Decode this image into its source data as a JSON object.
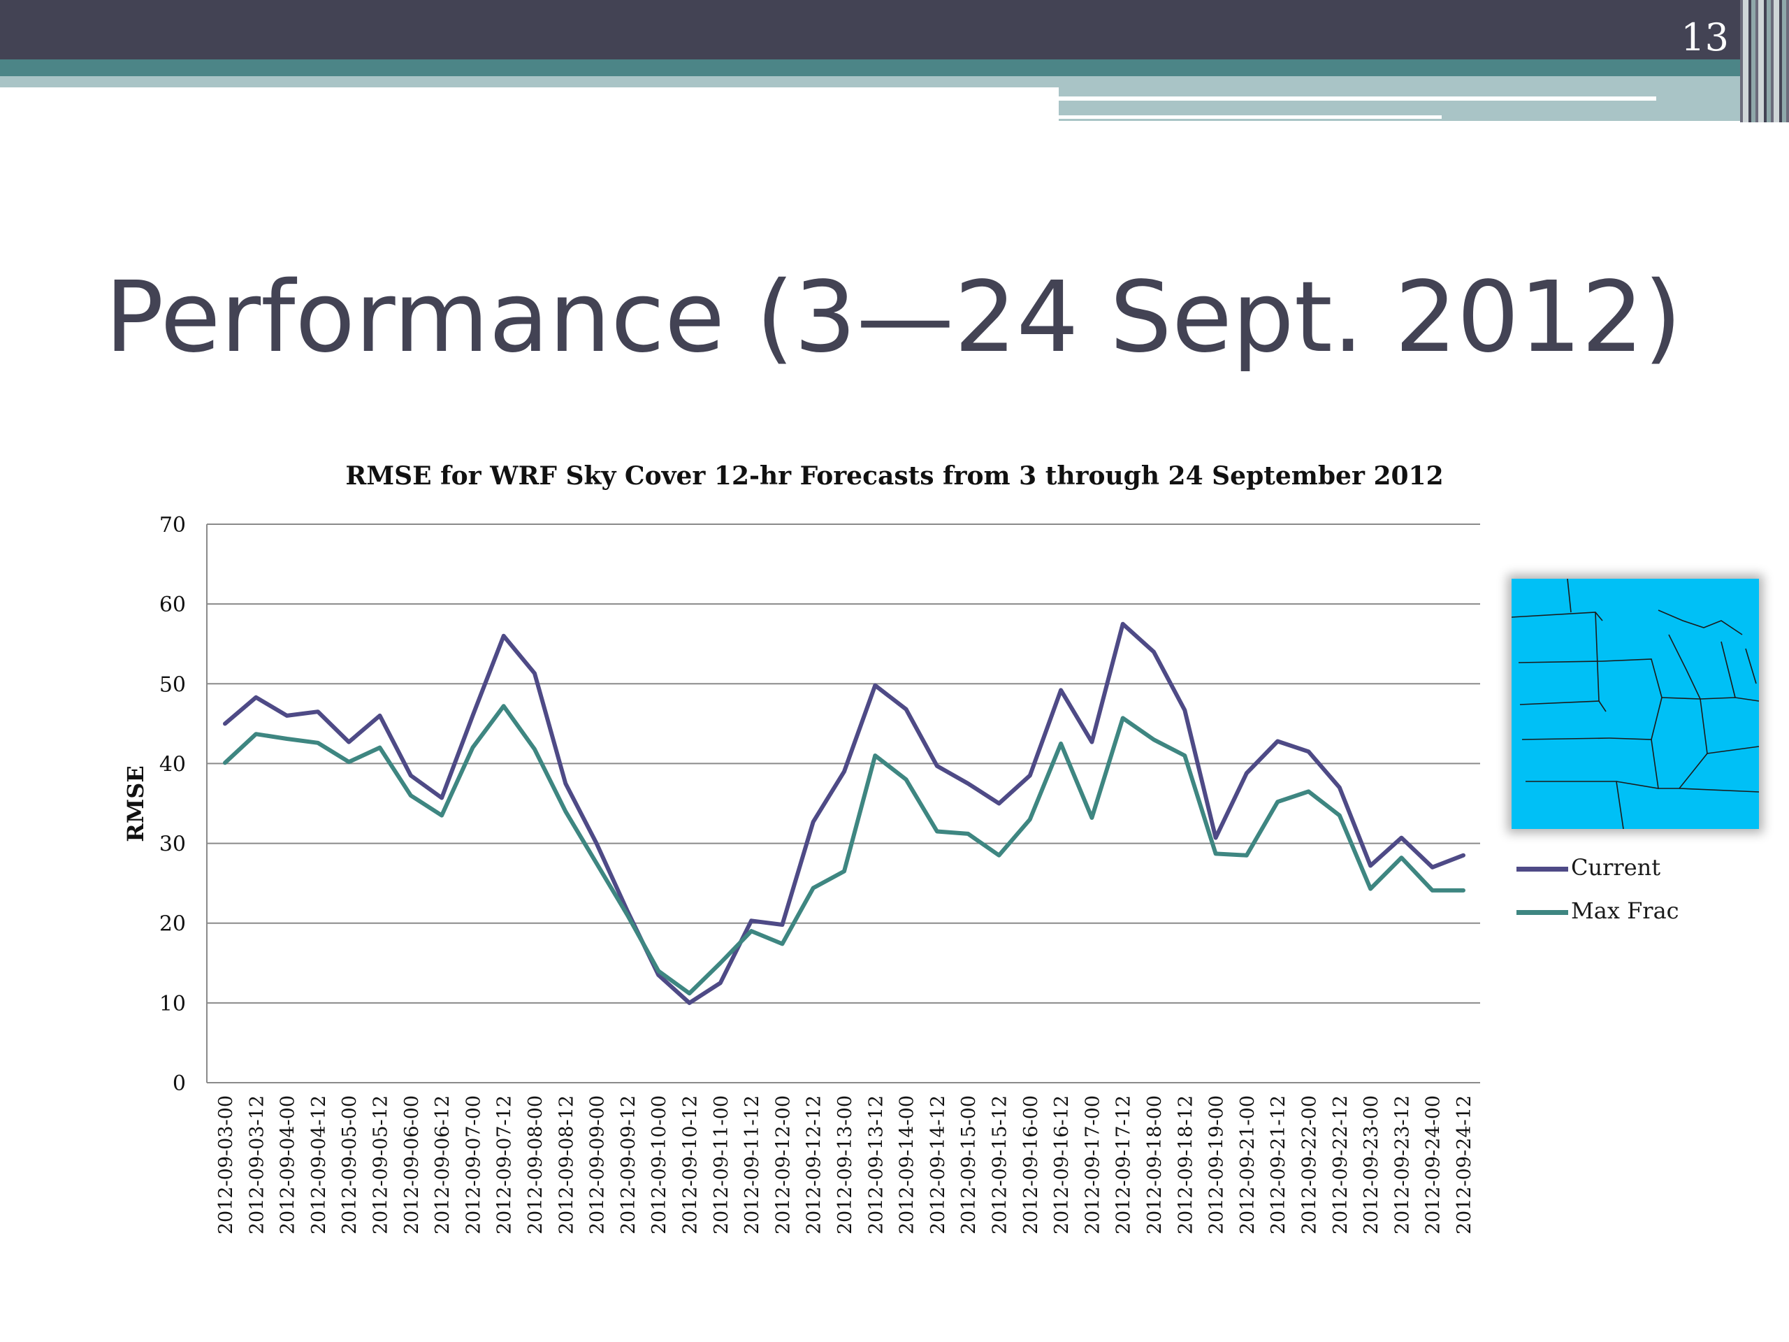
{
  "slide": {
    "number": "13",
    "title": "Performance (3—24 Sept. 2012)"
  },
  "colors": {
    "header": "#434354",
    "teal": "#4c8587",
    "light_teal": "#a9c4c6",
    "title_text": "#434354",
    "map_fill": "#00c0f6"
  },
  "map": {
    "name": "midwest-map-image"
  },
  "chart_data": {
    "type": "line",
    "title": "RMSE for WRF Sky Cover 12-hr Forecasts from 3 through 24 September 2012",
    "ylabel": "RMSE",
    "xlabel": "",
    "ylim": [
      0,
      70
    ],
    "yticks": [
      "0",
      "10",
      "20",
      "30",
      "40",
      "50",
      "60",
      "70"
    ],
    "grid": true,
    "legend_position": "right",
    "categories": [
      "2012-09-03-00",
      "2012-09-03-12",
      "2012-09-04-00",
      "2012-09-04-12",
      "2012-09-05-00",
      "2012-09-05-12",
      "2012-09-06-00",
      "2012-09-06-12",
      "2012-09-07-00",
      "2012-09-07-12",
      "2012-09-08-00",
      "2012-09-08-12",
      "2012-09-09-00",
      "2012-09-09-12",
      "2012-09-10-00",
      "2012-09-10-12",
      "2012-09-11-00",
      "2012-09-11-12",
      "2012-09-12-00",
      "2012-09-12-12",
      "2012-09-13-00",
      "2012-09-13-12",
      "2012-09-14-00",
      "2012-09-14-12",
      "2012-09-15-00",
      "2012-09-15-12",
      "2012-09-16-00",
      "2012-09-16-12",
      "2012-09-17-00",
      "2012-09-17-12",
      "2012-09-18-00",
      "2012-09-18-12",
      "2012-09-19-00",
      "2012-09-21-00",
      "2012-09-21-12",
      "2012-09-22-00",
      "2012-09-22-12",
      "2012-09-23-00",
      "2012-09-23-12",
      "2012-09-24-00",
      "2012-09-24-12"
    ],
    "series": [
      {
        "name": "Current",
        "color": "#4e4a86",
        "values": [
          45,
          48.3,
          46,
          46.5,
          42.7,
          46,
          38.5,
          35.7,
          46,
          56,
          51.3,
          37.5,
          30,
          21.5,
          13.5,
          10,
          12.5,
          20.3,
          19.8,
          32.7,
          39,
          49.8,
          46.8,
          39.7,
          37.5,
          35,
          38.5,
          49.2,
          42.7,
          57.5,
          54,
          46.7,
          30.7,
          38.8,
          42.8,
          41.5,
          37,
          27.2,
          30.7,
          27,
          28.5
        ]
      },
      {
        "name": "Max Frac",
        "color": "#3e8681",
        "values": [
          40.1,
          43.7,
          43.1,
          42.6,
          40.2,
          42,
          36,
          33.5,
          42,
          47.2,
          41.8,
          34,
          27.5,
          21,
          14,
          11.2,
          15,
          19,
          17.4,
          24.4,
          26.5,
          41,
          38,
          31.5,
          31.2,
          28.5,
          33,
          42.5,
          33.2,
          45.7,
          43,
          41,
          28.7,
          28.5,
          35.2,
          36.5,
          33.5,
          24.3,
          28.2,
          24.1,
          24.1
        ]
      }
    ]
  }
}
